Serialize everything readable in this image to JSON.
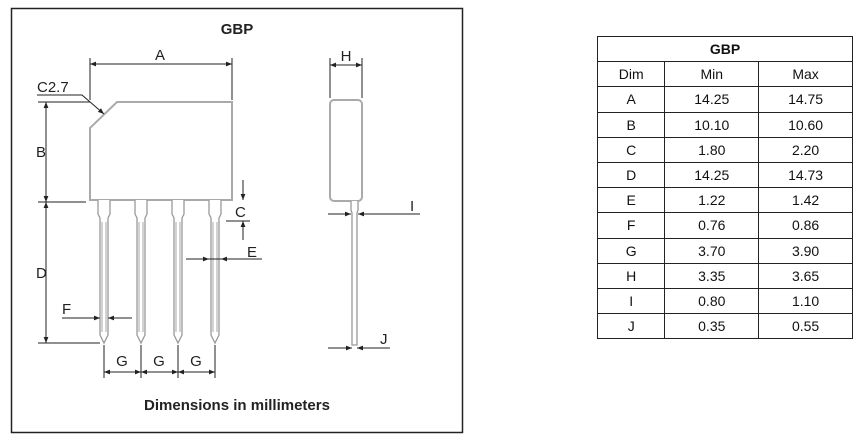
{
  "drawing": {
    "title": "GBP",
    "caption": "Dimensions in millimeters",
    "labels": {
      "A": "A",
      "B": "B",
      "C": "C",
      "D": "D",
      "E": "E",
      "F": "F",
      "G": "G",
      "H": "H",
      "I": "I",
      "J": "J",
      "chamfer": "C2.7"
    }
  },
  "table": {
    "title": "GBP",
    "headers": [
      "Dim",
      "Min",
      "Max"
    ],
    "rows": [
      [
        "A",
        "14.25",
        "14.75"
      ],
      [
        "B",
        "10.10",
        "10.60"
      ],
      [
        "C",
        "1.80",
        "2.20"
      ],
      [
        "D",
        "14.25",
        "14.73"
      ],
      [
        "E",
        "1.22",
        "1.42"
      ],
      [
        "F",
        "0.76",
        "0.86"
      ],
      [
        "G",
        "3.70",
        "3.90"
      ],
      [
        "H",
        "3.35",
        "3.65"
      ],
      [
        "I",
        "0.80",
        "1.10"
      ],
      [
        "J",
        "0.35",
        "0.55"
      ]
    ]
  }
}
